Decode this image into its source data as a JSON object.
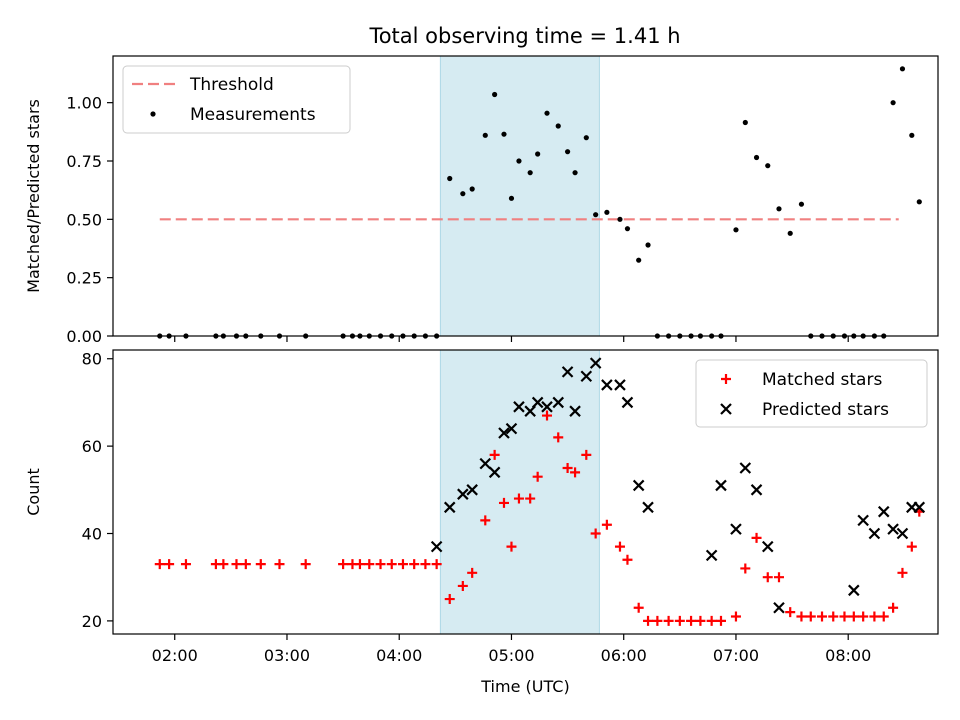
{
  "figure_title": "Total observing time = 1.41 h",
  "colors": {
    "shade": "#add8e6",
    "threshold": "#f08080",
    "measurement": "#000000",
    "matched": "#ff0000",
    "predicted": "#000000"
  },
  "chart_data": [
    {
      "type": "scatter",
      "title": "Total observing time = 1.41 h",
      "xlabel": "",
      "ylabel": "Matched/Predicted stars",
      "xlim": [
        "01:27",
        "08:48"
      ],
      "ylim": [
        0,
        1.2
      ],
      "x_ticks": [
        "02:00",
        "03:00",
        "04:00",
        "05:00",
        "06:00",
        "07:00",
        "08:00"
      ],
      "y_ticks": [
        "0.00",
        "0.25",
        "0.50",
        "0.75",
        "1.00"
      ],
      "y_tick_values": [
        0,
        0.25,
        0.5,
        0.75,
        1.0
      ],
      "shaded_region": {
        "x_start": "04:22",
        "x_end": "05:47"
      },
      "legend": {
        "position": "upper left",
        "entries": [
          "Threshold",
          "Measurements"
        ]
      },
      "threshold": {
        "name": "Threshold",
        "x": [
          "01:52",
          "08:27"
        ],
        "y": 0.5,
        "style": "dashed"
      },
      "series": [
        {
          "name": "Measurements",
          "x": [
            "01:52",
            "01:57",
            "02:06",
            "02:22",
            "02:26",
            "02:33",
            "02:38",
            "02:46",
            "02:56",
            "03:10",
            "03:30",
            "03:35",
            "03:39",
            "03:44",
            "03:50",
            "03:56",
            "04:02",
            "04:08",
            "04:14",
            "04:20",
            "04:27",
            "04:34",
            "04:39",
            "04:46",
            "04:51",
            "04:56",
            "05:00",
            "05:04",
            "05:10",
            "05:14",
            "05:19",
            "05:25",
            "05:30",
            "05:34",
            "05:40",
            "05:45",
            "05:51",
            "05:58",
            "06:02",
            "06:08",
            "06:13",
            "06:18",
            "06:24",
            "06:30",
            "06:36",
            "06:41",
            "06:47",
            "06:52",
            "07:00",
            "07:05",
            "07:11",
            "07:17",
            "07:23",
            "07:29",
            "07:35",
            "07:40",
            "07:46",
            "07:52",
            "07:58",
            "08:03",
            "08:08",
            "08:14",
            "08:19",
            "08:24",
            "08:29",
            "08:34",
            "08:38"
          ],
          "values": [
            0,
            0,
            0,
            0,
            0,
            0,
            0,
            0,
            0,
            0,
            0,
            0,
            0,
            0,
            0,
            0,
            0,
            0,
            0,
            0,
            0.675,
            0.61,
            0.63,
            0.86,
            1.035,
            0.865,
            0.59,
            0.75,
            0.7,
            0.78,
            0.955,
            0.9,
            0.79,
            0.7,
            0.85,
            0.52,
            0.53,
            0.5,
            0.46,
            0.325,
            0.39,
            0,
            0,
            0,
            0,
            0,
            0,
            0,
            0.455,
            0.915,
            0.765,
            0.73,
            0.545,
            0.44,
            0.565,
            0,
            0,
            0,
            0,
            0,
            0,
            0,
            0,
            1.0,
            1.145,
            0.86,
            0.575
          ]
        }
      ]
    },
    {
      "type": "scatter",
      "title": "",
      "xlabel": "Time (UTC)",
      "ylabel": "Count",
      "xlim": [
        "01:27",
        "08:48"
      ],
      "ylim": [
        17.0,
        82.0
      ],
      "x_ticks": [
        "02:00",
        "03:00",
        "04:00",
        "05:00",
        "06:00",
        "07:00",
        "08:00"
      ],
      "y_ticks": [
        "20",
        "40",
        "60",
        "80"
      ],
      "y_tick_values": [
        20,
        40,
        60,
        80
      ],
      "shaded_region": {
        "x_start": "04:22",
        "x_end": "05:47"
      },
      "legend": {
        "position": "upper right",
        "entries": [
          "Matched stars",
          "Predicted stars"
        ]
      },
      "series": [
        {
          "name": "Matched stars",
          "marker": "+",
          "x": [
            "01:52",
            "01:57",
            "02:06",
            "02:22",
            "02:26",
            "02:33",
            "02:38",
            "02:46",
            "02:56",
            "03:10",
            "03:30",
            "03:35",
            "03:39",
            "03:44",
            "03:50",
            "03:56",
            "04:02",
            "04:08",
            "04:14",
            "04:20",
            "04:27",
            "04:34",
            "04:39",
            "04:46",
            "04:51",
            "04:56",
            "05:00",
            "05:04",
            "05:10",
            "05:14",
            "05:19",
            "05:25",
            "05:30",
            "05:34",
            "05:40",
            "05:45",
            "05:51",
            "05:58",
            "06:02",
            "06:08",
            "06:13",
            "06:18",
            "06:24",
            "06:30",
            "06:36",
            "06:41",
            "06:47",
            "06:52",
            "07:00",
            "07:05",
            "07:11",
            "07:17",
            "07:23",
            "07:29",
            "07:35",
            "07:40",
            "07:46",
            "07:52",
            "07:58",
            "08:03",
            "08:08",
            "08:14",
            "08:19",
            "08:24",
            "08:29",
            "08:34",
            "08:38"
          ],
          "values": [
            33,
            33,
            33,
            33,
            33,
            33,
            33,
            33,
            33,
            33,
            33,
            33,
            33,
            33,
            33,
            33,
            33,
            33,
            33,
            33,
            25,
            28,
            31,
            43,
            58,
            47,
            37,
            48,
            48,
            53,
            67,
            62,
            55,
            54,
            58,
            40,
            42,
            37,
            34,
            23,
            20,
            20,
            20,
            20,
            20,
            20,
            20,
            20,
            21,
            32,
            39,
            30,
            30,
            22,
            21,
            21,
            21,
            21,
            21,
            21,
            21,
            21,
            21,
            23,
            31,
            37,
            45
          ]
        },
        {
          "name": "Predicted stars",
          "marker": "x",
          "x": [
            "04:20",
            "04:27",
            "04:34",
            "04:39",
            "04:46",
            "04:51",
            "04:56",
            "05:00",
            "05:04",
            "05:10",
            "05:14",
            "05:19",
            "05:25",
            "05:30",
            "05:34",
            "05:40",
            "05:45",
            "05:51",
            "05:58",
            "06:02",
            "06:08",
            "06:13",
            "06:47",
            "06:52",
            "07:00",
            "07:05",
            "07:11",
            "07:17",
            "07:23",
            "08:03",
            "08:08",
            "08:14",
            "08:19",
            "08:24",
            "08:29",
            "08:34",
            "08:38"
          ],
          "values": [
            37,
            46,
            49,
            50,
            56,
            54,
            63,
            64,
            69,
            68,
            70,
            69,
            70,
            77,
            68,
            76,
            79,
            74,
            74,
            70,
            51,
            46,
            35,
            51,
            41,
            55,
            50,
            37,
            23,
            27,
            43,
            40,
            45,
            41,
            40,
            46,
            46
          ]
        }
      ]
    }
  ]
}
